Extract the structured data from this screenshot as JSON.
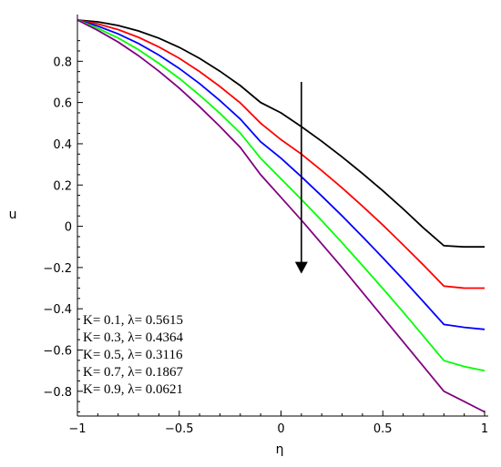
{
  "chart_data": {
    "type": "line",
    "xlabel": "η",
    "ylabel": "u",
    "xlim": [
      -1,
      1
    ],
    "ylim": [
      -0.92,
      1.0
    ],
    "x_ticks": [
      -1,
      -0.5,
      0,
      0.5,
      1
    ],
    "x_tick_labels": [
      "−1",
      "−0.5",
      "0",
      "0.5",
      "1"
    ],
    "y_ticks": [
      0.8,
      0.6,
      0.4,
      0.2,
      0,
      -0.2,
      -0.4,
      -0.6,
      -0.8
    ],
    "y_tick_labels": [
      "0.8",
      "0.6",
      "0.4",
      "0.2",
      "0",
      "−0.2",
      "−0.4",
      "−0.6",
      "−0.8"
    ],
    "grid": false,
    "legend_position": "bottom-left",
    "x": [
      -1.0,
      -0.9,
      -0.8,
      -0.7,
      -0.6,
      -0.5,
      -0.4,
      -0.3,
      -0.2,
      -0.1,
      0.0,
      0.1,
      0.2,
      0.3,
      0.4,
      0.5,
      0.6,
      0.7,
      0.8,
      0.9,
      1.0
    ],
    "series": [
      {
        "name": "K= 0.1, λ= 0.5615",
        "color": "#000000",
        "values": [
          1.0,
          0.991,
          0.9735,
          0.947,
          0.912,
          0.8675,
          0.814,
          0.752,
          0.682,
          0.6,
          0.55,
          0.483,
          0.412,
          0.336,
          0.256,
          0.172,
          0.084,
          -0.008,
          -0.094,
          -0.1,
          -0.1
        ]
      },
      {
        "name": "K= 0.3, λ= 0.4364",
        "color": "#ff0000",
        "values": [
          1.0,
          0.981,
          0.9535,
          0.916,
          0.8695,
          0.8145,
          0.75,
          0.678,
          0.598,
          0.5,
          0.42,
          0.35,
          0.27,
          0.186,
          0.098,
          0.006,
          -0.09,
          -0.188,
          -0.29,
          -0.3,
          -0.3
        ]
      },
      {
        "name": "K= 0.5, λ= 0.3116",
        "color": "#0000ff",
        "values": [
          1.0,
          0.971,
          0.933,
          0.886,
          0.83,
          0.765,
          0.692,
          0.61,
          0.52,
          0.41,
          0.33,
          0.24,
          0.147,
          0.05,
          -0.05,
          -0.153,
          -0.258,
          -0.366,
          -0.476,
          -0.49,
          -0.5
        ]
      },
      {
        "name": "K= 0.7, λ= 0.1867",
        "color": "#00ff00",
        "values": [
          1.0,
          0.96,
          0.913,
          0.856,
          0.79,
          0.717,
          0.636,
          0.548,
          0.452,
          0.33,
          0.23,
          0.13,
          0.027,
          -0.08,
          -0.19,
          -0.302,
          -0.416,
          -0.533,
          -0.651,
          -0.68,
          -0.7
        ]
      },
      {
        "name": "K= 0.9, λ= 0.0621",
        "color": "#800080",
        "values": [
          1.0,
          0.95,
          0.893,
          0.827,
          0.752,
          0.67,
          0.58,
          0.484,
          0.382,
          0.25,
          0.14,
          0.03,
          -0.085,
          -0.2,
          -0.32,
          -0.44,
          -0.56,
          -0.68,
          -0.8,
          -0.85,
          -0.9
        ]
      }
    ],
    "annotation": {
      "type": "arrow",
      "x": 0.1,
      "y_from": 0.7,
      "y_to": -0.23,
      "color": "#000000"
    }
  }
}
